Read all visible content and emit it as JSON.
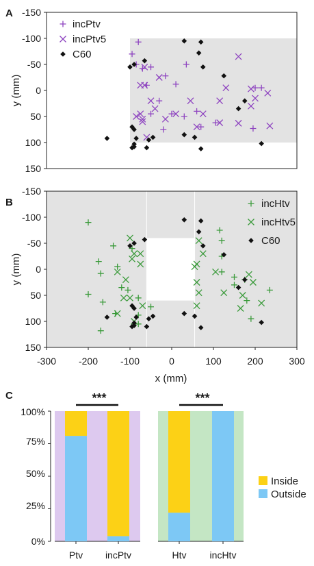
{
  "panels": [
    {
      "label": "A"
    },
    {
      "label": "B"
    },
    {
      "label": "C"
    }
  ],
  "colors": {
    "purple": "#8e44c0",
    "green": "#3a9a3a",
    "black": "#111111",
    "gray_region": "#e3e3e3",
    "lavender": "#ddc9ef",
    "mint": "#c4e6c4",
    "inside": "#fcd116",
    "outside": "#7dc8f5"
  },
  "chart_data": [
    {
      "type": "scatter",
      "panel": "A",
      "xlabel": "",
      "ylabel": "y (mm)",
      "xlim": [
        -300,
        300
      ],
      "ylim": [
        150,
        -150
      ],
      "y_ticks": [
        "-150",
        "-100",
        "-50",
        "0",
        "50",
        "100",
        "150"
      ],
      "shaded_region": {
        "x": [
          -100,
          300
        ],
        "y": [
          -100,
          100
        ]
      },
      "legend": [
        "incPtv",
        "incPtv5",
        "C60"
      ],
      "legend_position": "top-left",
      "series": [
        {
          "name": "incPtv",
          "marker": "plus",
          "color": "#8e44c0",
          "points": [
            [
              -80,
              -93
            ],
            [
              -95,
              -70
            ],
            [
              -85,
              -50
            ],
            [
              -70,
              -42
            ],
            [
              -50,
              -45
            ],
            [
              -60,
              -10
            ],
            [
              -15,
              -28
            ],
            [
              35,
              -50
            ],
            [
              10,
              -12
            ],
            [
              -30,
              20
            ],
            [
              -50,
              45
            ],
            [
              0,
              45
            ],
            [
              -20,
              75
            ],
            [
              60,
              40
            ],
            [
              30,
              50
            ],
            [
              105,
              62
            ],
            [
              200,
              -5
            ],
            [
              215,
              -5
            ],
            [
              195,
              73
            ],
            [
              70,
              70
            ]
          ]
        },
        {
          "name": "incPtv5",
          "marker": "x",
          "color": "#8e44c0",
          "points": [
            [
              -65,
              -45
            ],
            [
              -75,
              -10
            ],
            [
              -65,
              -10
            ],
            [
              -30,
              -25
            ],
            [
              -50,
              20
            ],
            [
              -85,
              50
            ],
            [
              -70,
              55
            ],
            [
              -40,
              35
            ],
            [
              -60,
              90
            ],
            [
              -15,
              55
            ],
            [
              10,
              45
            ],
            [
              -75,
              45
            ],
            [
              -70,
              60
            ],
            [
              45,
              20
            ],
            [
              75,
              45
            ],
            [
              60,
              70
            ],
            [
              115,
              20
            ],
            [
              130,
              -5
            ],
            [
              160,
              -65
            ],
            [
              190,
              -3
            ],
            [
              200,
              15
            ],
            [
              230,
              5
            ],
            [
              115,
              62
            ],
            [
              160,
              63
            ],
            [
              190,
              30
            ],
            [
              235,
              68
            ]
          ]
        },
        {
          "name": "C60",
          "marker": "diamond",
          "color": "#111111",
          "points": [
            [
              -155,
              92
            ],
            [
              -90,
              -50
            ],
            [
              -100,
              -45
            ],
            [
              -65,
              -57
            ],
            [
              -55,
              95
            ],
            [
              -45,
              90
            ],
            [
              30,
              -95
            ],
            [
              70,
              -93
            ],
            [
              65,
              -72
            ],
            [
              75,
              -45
            ],
            [
              125,
              -28
            ],
            [
              160,
              35
            ],
            [
              175,
              20
            ],
            [
              215,
              102
            ],
            [
              -95,
              70
            ],
            [
              -90,
              75
            ],
            [
              -85,
              92
            ],
            [
              -90,
              103
            ],
            [
              -95,
              110
            ],
            [
              -90,
              108
            ],
            [
              70,
              112
            ],
            [
              55,
              90
            ],
            [
              30,
              85
            ],
            [
              -60,
              110
            ]
          ]
        }
      ]
    },
    {
      "type": "scatter",
      "panel": "B",
      "xlabel": "x (mm)",
      "ylabel": "y (mm)",
      "xlim": [
        -300,
        300
      ],
      "ylim": [
        150,
        -150
      ],
      "x_ticks": [
        "-300",
        "-200",
        "-100",
        "0",
        "100",
        "200",
        "300"
      ],
      "y_ticks": [
        "-150",
        "-100",
        "-50",
        "0",
        "50",
        "100",
        "150"
      ],
      "shaded_region": {
        "x": [
          -300,
          300
        ],
        "y": [
          -150,
          150
        ]
      },
      "white_region": {
        "x": [
          -60,
          55
        ],
        "y": [
          -60,
          60
        ]
      },
      "legend": [
        "incHtv",
        "incHtv5",
        "C60"
      ],
      "legend_position": "top-right",
      "series": [
        {
          "name": "incHtv",
          "marker": "plus",
          "color": "#3a9a3a",
          "points": [
            [
              -200,
              -90
            ],
            [
              -140,
              -45
            ],
            [
              -175,
              -15
            ],
            [
              -170,
              8
            ],
            [
              -130,
              -5
            ],
            [
              -120,
              35
            ],
            [
              -165,
              63
            ],
            [
              -135,
              85
            ],
            [
              -170,
              118
            ],
            [
              -200,
              48
            ],
            [
              -105,
              40
            ],
            [
              -80,
              55
            ],
            [
              -95,
              -40
            ],
            [
              -50,
              72
            ],
            [
              -80,
              88
            ],
            [
              -80,
              105
            ],
            [
              115,
              -75
            ],
            [
              120,
              -55
            ],
            [
              120,
              -25
            ],
            [
              120,
              5
            ],
            [
              150,
              15
            ],
            [
              150,
              30
            ],
            [
              175,
              20
            ],
            [
              180,
              60
            ],
            [
              190,
              95
            ],
            [
              235,
              40
            ]
          ]
        },
        {
          "name": "incHtv5",
          "marker": "x",
          "color": "#3a9a3a",
          "points": [
            [
              -100,
              -60
            ],
            [
              -90,
              -30
            ],
            [
              -75,
              -30
            ],
            [
              -130,
              5
            ],
            [
              -110,
              20
            ],
            [
              -95,
              -20
            ],
            [
              -75,
              -10
            ],
            [
              -100,
              55
            ],
            [
              -115,
              55
            ],
            [
              -130,
              85
            ],
            [
              -90,
              100
            ],
            [
              -70,
              70
            ],
            [
              65,
              -55
            ],
            [
              75,
              -30
            ],
            [
              60,
              -10
            ],
            [
              55,
              -5
            ],
            [
              60,
              25
            ],
            [
              65,
              45
            ],
            [
              60,
              70
            ],
            [
              105,
              5
            ],
            [
              125,
              45
            ],
            [
              170,
              50
            ],
            [
              165,
              75
            ],
            [
              185,
              10
            ],
            [
              195,
              25
            ],
            [
              215,
              65
            ]
          ]
        },
        {
          "name": "C60",
          "marker": "diamond",
          "color": "#111111",
          "points": [
            [
              -155,
              92
            ],
            [
              -90,
              -50
            ],
            [
              -100,
              -45
            ],
            [
              -65,
              -57
            ],
            [
              -55,
              95
            ],
            [
              -45,
              90
            ],
            [
              30,
              -95
            ],
            [
              70,
              -93
            ],
            [
              65,
              -72
            ],
            [
              75,
              -45
            ],
            [
              125,
              -28
            ],
            [
              160,
              35
            ],
            [
              175,
              20
            ],
            [
              215,
              102
            ],
            [
              -95,
              70
            ],
            [
              -90,
              75
            ],
            [
              -85,
              92
            ],
            [
              -90,
              103
            ],
            [
              -95,
              110
            ],
            [
              -90,
              108
            ],
            [
              70,
              112
            ],
            [
              55,
              90
            ],
            [
              30,
              85
            ],
            [
              -60,
              110
            ]
          ]
        }
      ]
    },
    {
      "type": "bar",
      "panel": "C",
      "stacked": true,
      "percent": true,
      "y_ticks": [
        "0%",
        "25%",
        "50%",
        "75%",
        "100%"
      ],
      "ylim": [
        0,
        100
      ],
      "legend": [
        "Inside",
        "Outside"
      ],
      "legend_position": "right",
      "groups": [
        {
          "categories": [
            "Ptv",
            "incPtv"
          ],
          "background": "lavender",
          "series": [
            {
              "name": "Outside",
              "values": [
                81,
                4
              ]
            },
            {
              "name": "Inside",
              "values": [
                19,
                96
              ]
            }
          ],
          "significance": "***"
        },
        {
          "categories": [
            "Htv",
            "incHtv"
          ],
          "background": "mint",
          "series": [
            {
              "name": "Outside",
              "values": [
                22,
                100
              ]
            },
            {
              "name": "Inside",
              "values": [
                78,
                0
              ]
            }
          ],
          "significance": "***"
        }
      ]
    }
  ]
}
